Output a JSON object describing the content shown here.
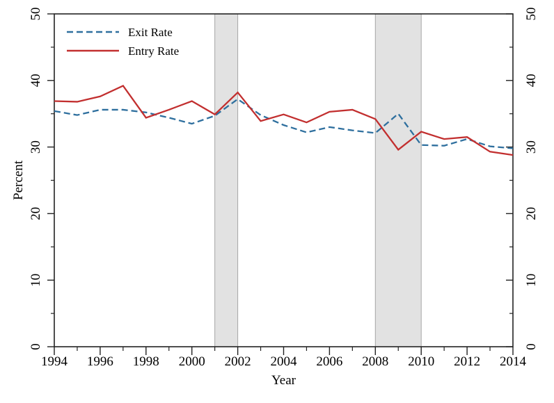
{
  "figure": {
    "background": "#ffffff",
    "description": "Line chart of firm exit and entry rates, 1994-2014, with recession shading"
  },
  "chart_data": {
    "type": "line",
    "title": "",
    "xlabel": "Year",
    "ylabel": "Percent",
    "xlim": [
      1994,
      2014
    ],
    "ylim": [
      0,
      50
    ],
    "grid": false,
    "x": [
      1994,
      1995,
      1996,
      1997,
      1998,
      1999,
      2000,
      2001,
      2002,
      2003,
      2004,
      2005,
      2006,
      2007,
      2008,
      2009,
      2010,
      2011,
      2012,
      2013,
      2014
    ],
    "series": [
      {
        "name": "Exit Rate",
        "style": "dashed",
        "color": "#2E6F9E",
        "values": [
          35.4,
          34.8,
          35.6,
          35.6,
          35.2,
          34.4,
          33.5,
          34.7,
          37.2,
          34.8,
          33.3,
          32.2,
          33.0,
          32.5,
          32.1,
          35.0,
          30.3,
          30.2,
          31.2,
          30.1,
          29.8
        ]
      },
      {
        "name": "Entry Rate",
        "style": "solid",
        "color": "#C22F2F",
        "values": [
          36.9,
          36.8,
          37.6,
          39.2,
          34.4,
          35.6,
          36.9,
          34.9,
          38.2,
          33.9,
          34.9,
          33.7,
          35.3,
          35.6,
          34.2,
          29.6,
          32.3,
          31.2,
          31.5,
          29.3,
          28.8
        ]
      }
    ],
    "shaded_bands": [
      {
        "from": 2001,
        "to": 2002
      },
      {
        "from": 2008,
        "to": 2010
      }
    ],
    "x_major_ticks": [
      1994,
      1996,
      1998,
      2000,
      2002,
      2004,
      2006,
      2008,
      2010,
      2012,
      2014
    ],
    "x_minor_ticks": [
      1995,
      1997,
      1999,
      2001,
      2003,
      2005,
      2007,
      2009,
      2011,
      2013
    ],
    "y_major_ticks": [
      0,
      10,
      20,
      30,
      40,
      50
    ],
    "y_minor_ticks": [
      5,
      15,
      25,
      35,
      45
    ],
    "right_axis_mirror_labels": true,
    "legend": {
      "position": "top-left",
      "items": [
        "Exit Rate",
        "Entry Rate"
      ]
    },
    "colors": {
      "band_fill": "#E2E2E2",
      "band_stroke": "#A6A6A6",
      "axis": "#222222",
      "text": "#000000"
    }
  }
}
